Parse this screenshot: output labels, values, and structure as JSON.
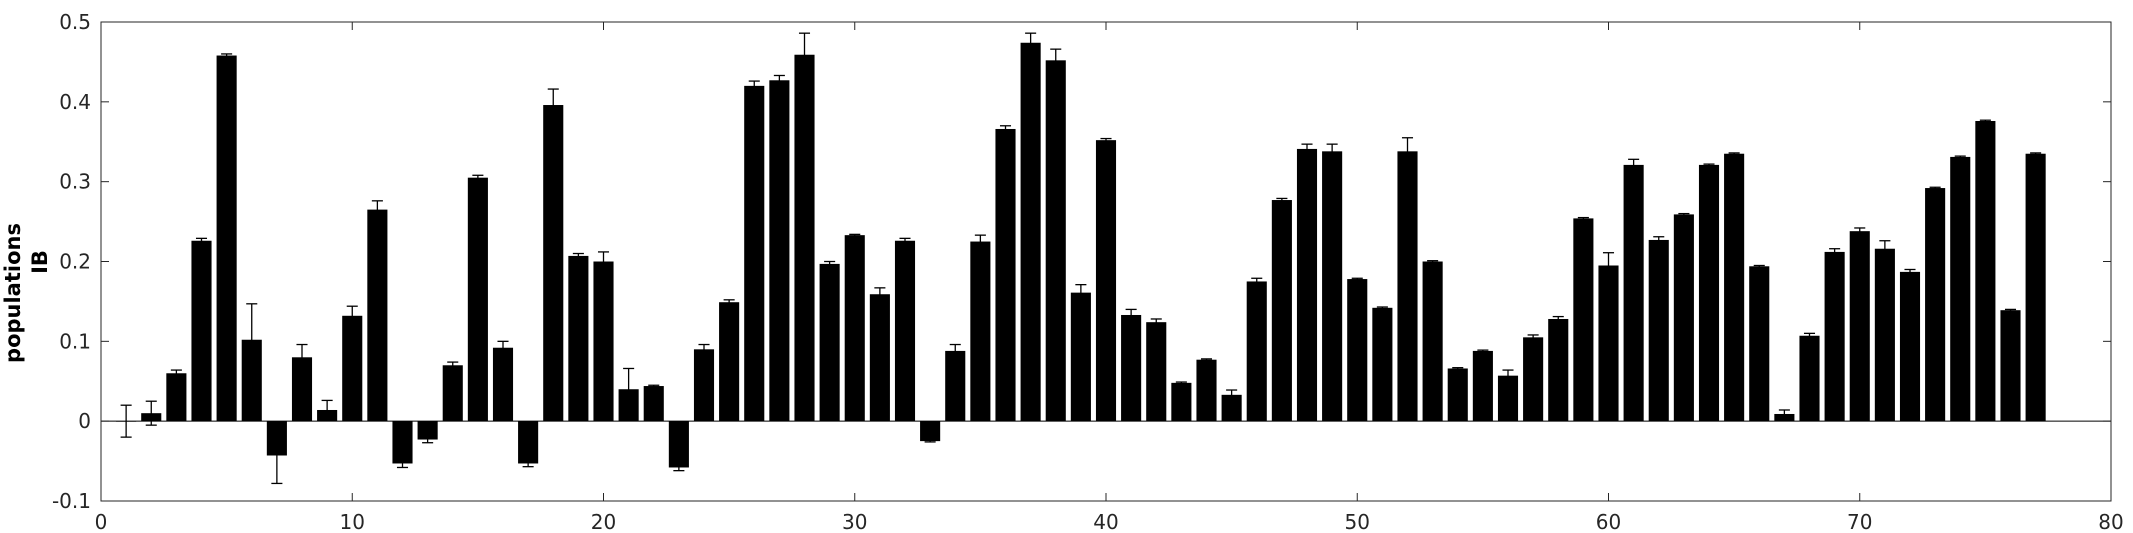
{
  "chart_data": {
    "type": "bar",
    "title": "",
    "xlabel": "",
    "ylabel_lines": [
      "populations",
      "IB"
    ],
    "xlim": [
      0,
      80
    ],
    "ylim": [
      -0.1,
      0.5
    ],
    "xticks": [
      0,
      10,
      20,
      30,
      40,
      50,
      60,
      70,
      80
    ],
    "yticks": [
      -0.1,
      0,
      0.1,
      0.2,
      0.3,
      0.4,
      0.5
    ],
    "ytick_labels": [
      "-0.1",
      "0",
      "0.1",
      "0.2",
      "0.3",
      "0.4",
      "0.5"
    ],
    "grid": false,
    "legend": "none",
    "bar_color": "#000000",
    "x": [
      1,
      2,
      3,
      4,
      5,
      6,
      7,
      8,
      9,
      10,
      11,
      12,
      13,
      14,
      15,
      16,
      17,
      18,
      19,
      20,
      21,
      22,
      23,
      24,
      25,
      26,
      27,
      28,
      29,
      30,
      31,
      32,
      33,
      34,
      35,
      36,
      37,
      38,
      39,
      40,
      41,
      42,
      43,
      44,
      45,
      46,
      47,
      48,
      49,
      50,
      51,
      52,
      53,
      54,
      55,
      56,
      57,
      58,
      59,
      60,
      61,
      62,
      63,
      64,
      65,
      66,
      67,
      68,
      69,
      70,
      71,
      72,
      73,
      74,
      75,
      76,
      77
    ],
    "values": [
      0.0,
      0.01,
      0.06,
      0.226,
      0.458,
      0.102,
      -0.043,
      0.08,
      0.014,
      0.132,
      0.265,
      -0.053,
      -0.023,
      0.07,
      0.305,
      0.092,
      -0.053,
      0.396,
      0.207,
      0.2,
      0.04,
      0.044,
      -0.058,
      0.09,
      0.149,
      0.42,
      0.427,
      0.459,
      0.197,
      0.233,
      0.159,
      0.226,
      -0.025,
      0.088,
      0.225,
      0.366,
      0.474,
      0.452,
      0.161,
      0.352,
      0.133,
      0.124,
      0.048,
      0.077,
      0.033,
      0.175,
      0.277,
      0.341,
      0.338,
      0.178,
      0.142,
      0.338,
      0.2,
      0.066,
      0.088,
      0.057,
      0.105,
      0.128,
      0.254,
      0.195,
      0.321,
      0.227,
      0.259,
      0.321,
      0.335,
      0.194,
      0.009,
      0.107,
      0.212,
      0.238,
      0.216,
      0.187,
      0.292,
      0.331,
      0.376,
      0.139,
      0.335
    ],
    "errors": [
      0.02,
      0.015,
      0.004,
      0.003,
      0.002,
      0.045,
      0.035,
      0.016,
      0.012,
      0.012,
      0.011,
      0.005,
      0.004,
      0.004,
      0.003,
      0.008,
      0.004,
      0.02,
      0.003,
      0.012,
      0.026,
      0.001,
      0.004,
      0.006,
      0.003,
      0.006,
      0.006,
      0.027,
      0.003,
      0.001,
      0.008,
      0.003,
      0.001,
      0.008,
      0.008,
      0.004,
      0.012,
      0.014,
      0.01,
      0.002,
      0.007,
      0.004,
      0.001,
      0.001,
      0.006,
      0.004,
      0.002,
      0.006,
      0.009,
      0.001,
      0.001,
      0.017,
      0.001,
      0.001,
      0.001,
      0.007,
      0.003,
      0.003,
      0.001,
      0.016,
      0.007,
      0.004,
      0.001,
      0.001,
      0.001,
      0.001,
      0.005,
      0.003,
      0.004,
      0.004,
      0.01,
      0.003,
      0.001,
      0.001,
      0.001,
      0.001,
      0.001
    ]
  }
}
